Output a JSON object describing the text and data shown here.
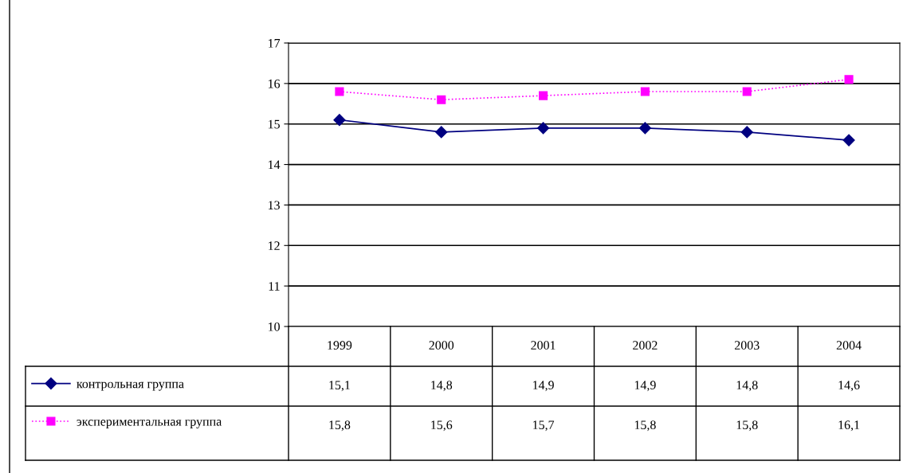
{
  "chart_data": {
    "type": "line",
    "categories": [
      "1999",
      "2000",
      "2001",
      "2002",
      "2003",
      "2004"
    ],
    "series": [
      {
        "name": "контрольная группа",
        "color": "#000080",
        "values": [
          15.1,
          14.8,
          14.9,
          14.9,
          14.8,
          14.6
        ],
        "value_labels": [
          "15,1",
          "14,8",
          "14,9",
          "14,9",
          "14,8",
          "14,6"
        ],
        "marker": "diamond",
        "line_style": "solid"
      },
      {
        "name": "экспериментальная группа",
        "color": "#ff00ff",
        "values": [
          15.8,
          15.6,
          15.7,
          15.8,
          15.8,
          16.1
        ],
        "value_labels": [
          "15,8",
          "15,6",
          "15,7",
          "15,8",
          "15,8",
          "16,1"
        ],
        "marker": "square",
        "line_style": "dotted"
      }
    ],
    "ylim": [
      10,
      17
    ],
    "yticks": [
      10,
      11,
      12,
      13,
      14,
      15,
      16,
      17
    ],
    "grid": "y",
    "legend": "bottom"
  }
}
